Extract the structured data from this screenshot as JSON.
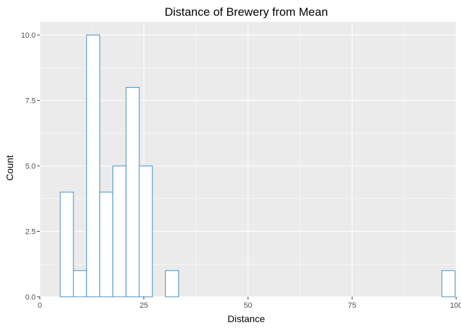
{
  "chart_data": {
    "type": "bar",
    "title": "Distance of Brewery from Mean",
    "xlabel": "Distance",
    "ylabel": "Count",
    "xlim": [
      0,
      100
    ],
    "ylim": [
      0,
      10.5
    ],
    "x_ticks": [
      0,
      25,
      50,
      75,
      100
    ],
    "x_tick_labels": [
      "0",
      "25",
      "50",
      "75",
      "100"
    ],
    "y_ticks": [
      0,
      2.5,
      5,
      7.5,
      10
    ],
    "y_tick_labels": [
      "0.0",
      "2.5",
      "5.0",
      "7.5",
      "10.0"
    ],
    "bin_width": 3.16,
    "first_bin_start": 4.92,
    "counts": [
      4,
      1,
      10,
      4,
      5,
      8,
      5,
      0,
      1,
      0,
      0,
      0,
      0,
      0,
      0,
      0,
      0,
      0,
      0,
      0,
      0,
      0,
      0,
      0,
      0,
      0,
      0,
      0,
      0,
      1
    ],
    "grid": true,
    "legend": "none",
    "colors": {
      "panel_background": "#EBEBEB",
      "grid_line": "#FFFFFF",
      "bar_fill": "#FFFFFF",
      "bar_outline": "#3C8FC6"
    }
  }
}
